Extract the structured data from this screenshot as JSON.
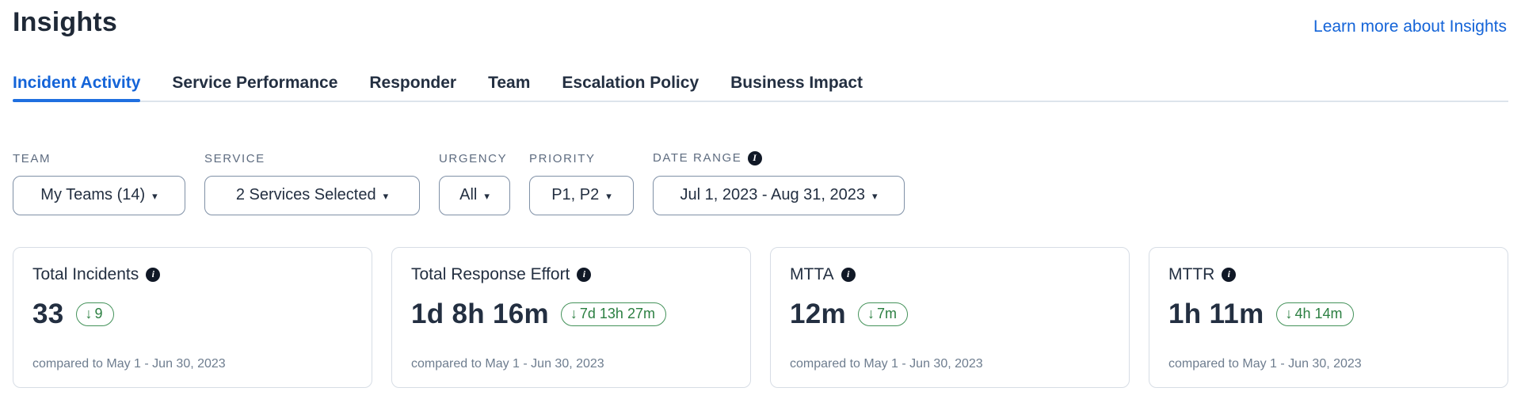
{
  "icons": {
    "info": "i",
    "caret_down": "▾",
    "down_arrow": "↓"
  },
  "colors": {
    "accent_blue": "#1464d8",
    "dark_text": "#232f41",
    "delta_green": "#2b7f41",
    "muted_gray": "#6e7d8f"
  },
  "header": {
    "title": "Insights",
    "learn_more_label": "Learn more about Insights"
  },
  "tabs": [
    {
      "label": "Incident Activity",
      "active": true
    },
    {
      "label": "Service Performance",
      "active": false
    },
    {
      "label": "Responder",
      "active": false
    },
    {
      "label": "Team",
      "active": false
    },
    {
      "label": "Escalation Policy",
      "active": false
    },
    {
      "label": "Business Impact",
      "active": false
    }
  ],
  "filters": [
    {
      "label": "TEAM",
      "value": "My Teams (14)"
    },
    {
      "label": "SERVICE",
      "value": "2 Services Selected"
    },
    {
      "label": "URGENCY",
      "value": "All"
    },
    {
      "label": "PRIORITY",
      "value": "P1, P2"
    },
    {
      "label": "DATE RANGE",
      "value": "Jul 1, 2023 - Aug 31, 2023",
      "has_info": true
    }
  ],
  "cards": [
    {
      "title": "Total Incidents",
      "value": "33",
      "delta": "9",
      "delta_direction": "down",
      "compared": "compared to May 1 - Jun 30, 2023"
    },
    {
      "title": "Total Response Effort",
      "value": "1d 8h 16m",
      "delta": "7d 13h 27m",
      "delta_direction": "down",
      "compared": "compared to May 1 - Jun 30, 2023"
    },
    {
      "title": "MTTA",
      "value": "12m",
      "delta": "7m",
      "delta_direction": "down",
      "compared": "compared to May 1 - Jun 30, 2023"
    },
    {
      "title": "MTTR",
      "value": "1h 11m",
      "delta": "4h 14m",
      "delta_direction": "down",
      "compared": "compared to May 1 - Jun 30, 2023"
    }
  ]
}
